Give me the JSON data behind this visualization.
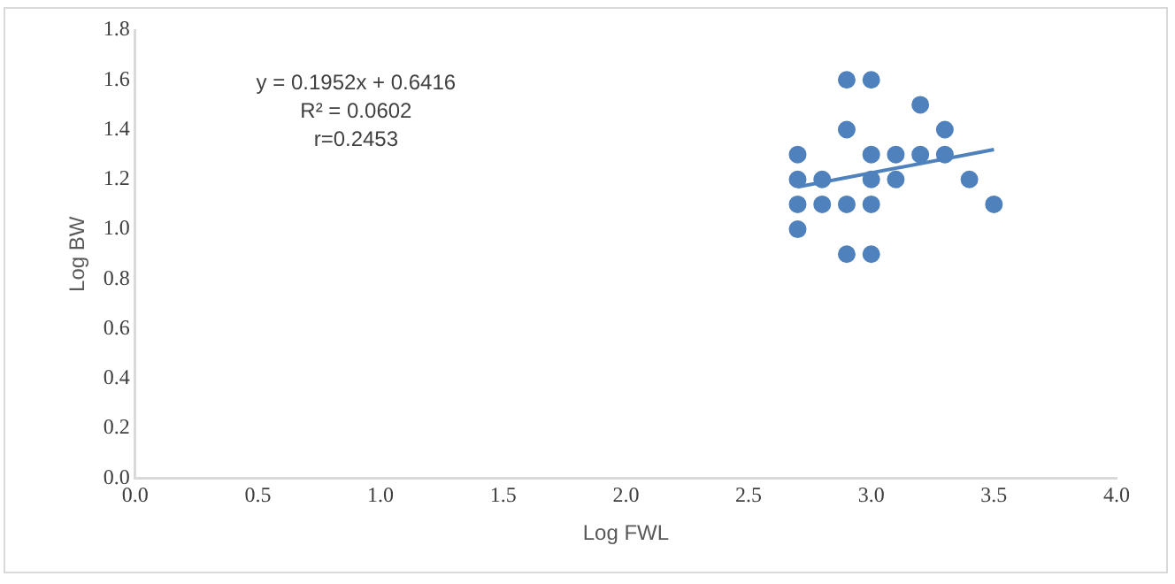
{
  "chart_data": {
    "type": "scatter",
    "xlabel": "Log FWL",
    "ylabel": "Log BW",
    "annotations": [
      "y = 0.1952x + 0.6416",
      "R² = 0.0602",
      "r=0.2453"
    ],
    "series": [
      {
        "color": "#4f81bd",
        "marker": "circle",
        "x": [
          2.9,
          3.0,
          3.2,
          2.9,
          3.3,
          2.7,
          3.0,
          3.1,
          3.2,
          3.3,
          2.7,
          2.8,
          3.0,
          3.1,
          3.4,
          2.7,
          2.8,
          2.9,
          3.0,
          3.5,
          2.7,
          2.9,
          3.0
        ],
        "values": [
          1.6,
          1.6,
          1.5,
          1.4,
          1.4,
          1.3,
          1.3,
          1.3,
          1.3,
          1.3,
          1.2,
          1.2,
          1.2,
          1.2,
          1.2,
          1.1,
          1.1,
          1.1,
          1.1,
          1.1,
          1.0,
          0.9,
          0.9
        ]
      },
      {
        "type": "line",
        "marker": "none",
        "color": "#4f81bd",
        "x": [
          2.7,
          3.5
        ],
        "values": [
          1.17,
          1.32
        ]
      }
    ],
    "xlim": [
      0,
      4
    ],
    "xticks": [
      {
        "value": 0,
        "label": "0.0"
      },
      {
        "value": 0.5,
        "label": "0.5"
      },
      {
        "value": 1,
        "label": "1.0"
      },
      {
        "value": 1.5,
        "label": "1.5"
      },
      {
        "value": 2,
        "label": "2.0"
      },
      {
        "value": 2.5,
        "label": "2.5"
      },
      {
        "value": 3,
        "label": "3.0"
      },
      {
        "value": 3.5,
        "label": "3.5"
      },
      {
        "value": 4,
        "label": "4.0"
      }
    ],
    "ylim": [
      0,
      1.8
    ],
    "yticks": [
      {
        "value": 0,
        "label": "0.0"
      },
      {
        "value": 0.2,
        "label": "0.2"
      },
      {
        "value": 0.4,
        "label": "0.4"
      },
      {
        "value": 0.6,
        "label": "0.6"
      },
      {
        "value": 0.8,
        "label": "0.8"
      },
      {
        "value": 1,
        "label": "1.0"
      },
      {
        "value": 1.2,
        "label": "1.2"
      },
      {
        "value": 1.4,
        "label": "1.4"
      },
      {
        "value": 1.6,
        "label": "1.6"
      },
      {
        "value": 1.8,
        "label": "1.8"
      }
    ],
    "grid": false,
    "legend": false
  }
}
